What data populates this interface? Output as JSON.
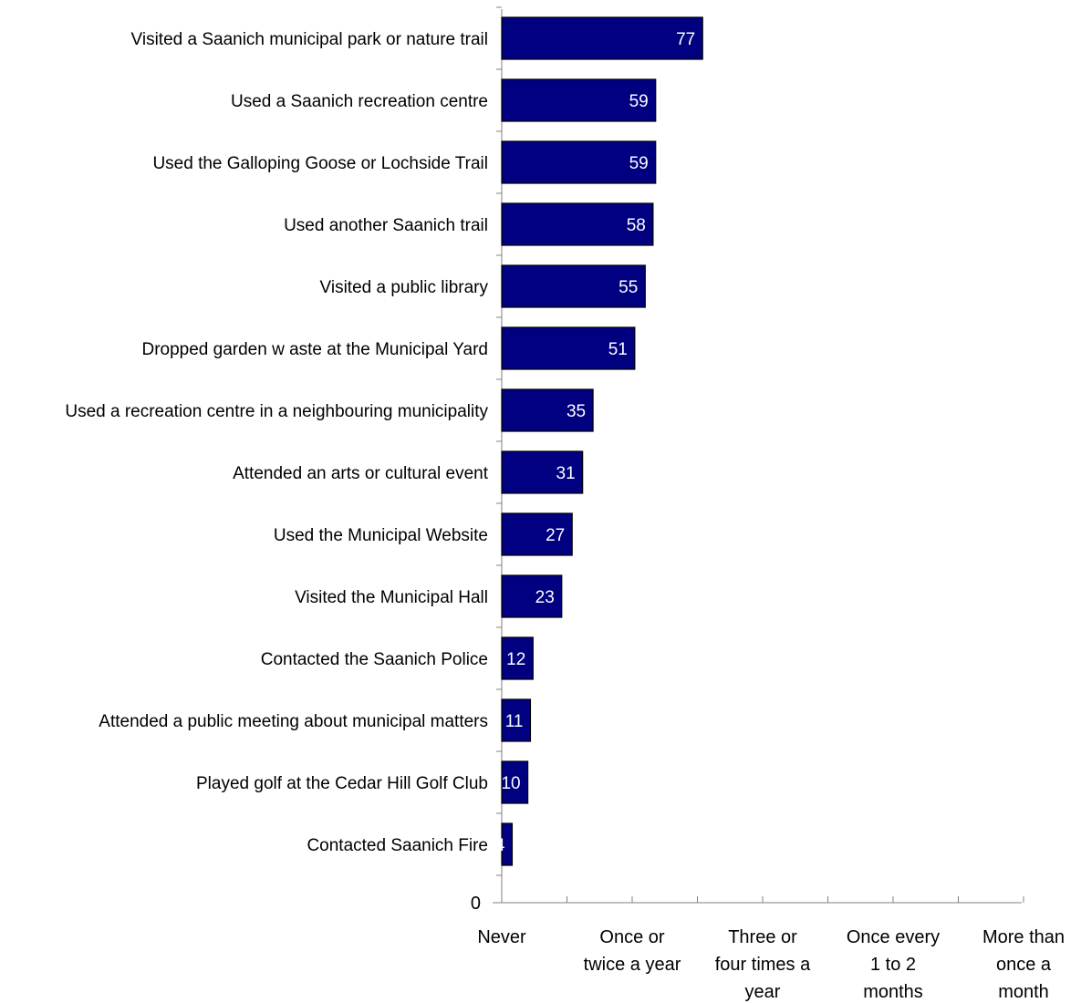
{
  "chart_data": {
    "type": "bar",
    "orientation": "horizontal",
    "categories": [
      "Visited a Saanich municipal park or nature trail",
      "Used a Saanich recreation centre",
      "Used the Galloping Goose or Lochside Trail",
      "Used another Saanich trail",
      "Visited a public library",
      "Dropped garden w aste at the Municipal Yard",
      "Used a recreation centre in a neighbouring municipality",
      "Attended an arts or cultural event",
      "Used the Municipal Website",
      "Visited the Municipal Hall",
      "Contacted the Saanich Police",
      "Attended a public meeting about municipal matters",
      "Played golf at the Cedar Hill Golf Club",
      "Contacted Saanich Fire"
    ],
    "values": [
      77,
      59,
      59,
      58,
      55,
      51,
      35,
      31,
      27,
      23,
      12,
      11,
      10,
      4
    ],
    "value_axis_min_label": "0",
    "xlim": [
      0,
      200
    ],
    "x_ticks": [
      {
        "value": 0,
        "lines": [
          "Never"
        ]
      },
      {
        "value": 50,
        "lines": [
          "Once or",
          "twice a year"
        ]
      },
      {
        "value": 100,
        "lines": [
          "Three or",
          "four times a",
          "year"
        ]
      },
      {
        "value": 150,
        "lines": [
          "Once every",
          "1 to 2",
          "months"
        ]
      },
      {
        "value": 200,
        "lines": [
          "More than",
          "once a",
          "month"
        ]
      }
    ],
    "bar_color": "#000080",
    "bar_edge_color": "#000000",
    "value_label_color": "#ffffff",
    "title": "",
    "xlabel": "",
    "ylabel": "",
    "grid": false
  }
}
